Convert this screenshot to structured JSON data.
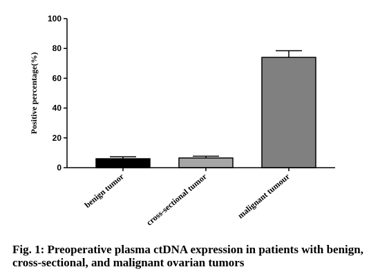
{
  "caption": "Fig. 1: Preoperative plasma ctDNA expression in patients with benign, cross-sectional, and malignant ovarian tumors",
  "chart_data": {
    "type": "bar",
    "ylabel": "Positive percentage(%)",
    "xlabel": "",
    "ylim": [
      0,
      100
    ],
    "yticks": [
      0,
      20,
      40,
      60,
      80,
      100
    ],
    "categories": [
      "benign tumor",
      "cross-sectional tumor",
      "malignant tumour"
    ],
    "values": [
      6,
      6.5,
      74
    ],
    "error_upper": [
      7.3,
      7.7,
      78.5
    ],
    "bar_colors": [
      "#000000",
      "#a6a6a6",
      "#808080"
    ],
    "grid": false
  }
}
